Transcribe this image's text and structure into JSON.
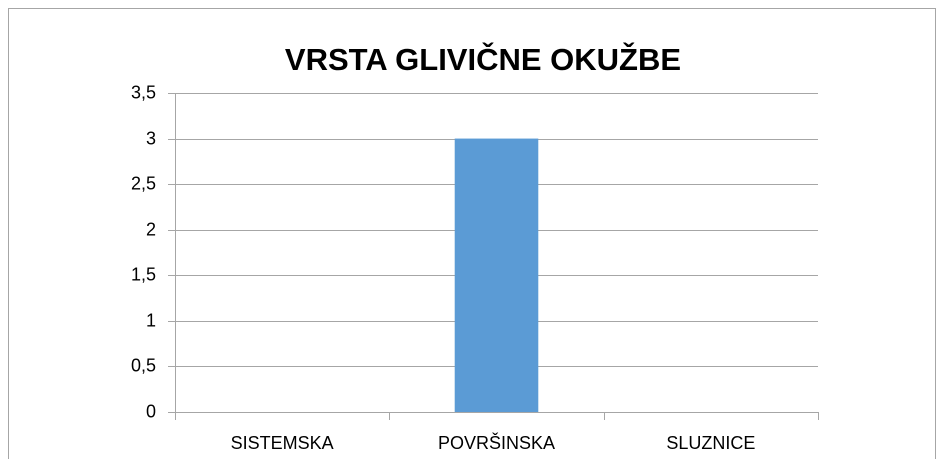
{
  "chart_data": {
    "type": "bar",
    "title": "VRSTA GLIVIČNE OKUŽBE",
    "categories": [
      "SISTEMSKA",
      "POVRŠINSKA",
      "SLUZNICE"
    ],
    "values": [
      0,
      3,
      0
    ],
    "color": "#5b9bd5",
    "ylim": [
      0,
      3.5
    ],
    "yticks": [
      0,
      {
        "value": 0.5,
        "label": "0,5"
      },
      1,
      {
        "value": 1.5,
        "label": "1,5"
      },
      2,
      {
        "value": 2.5,
        "label": "2,5"
      },
      3,
      {
        "value": 3.5,
        "label": "3,5"
      }
    ],
    "grid": true
  }
}
